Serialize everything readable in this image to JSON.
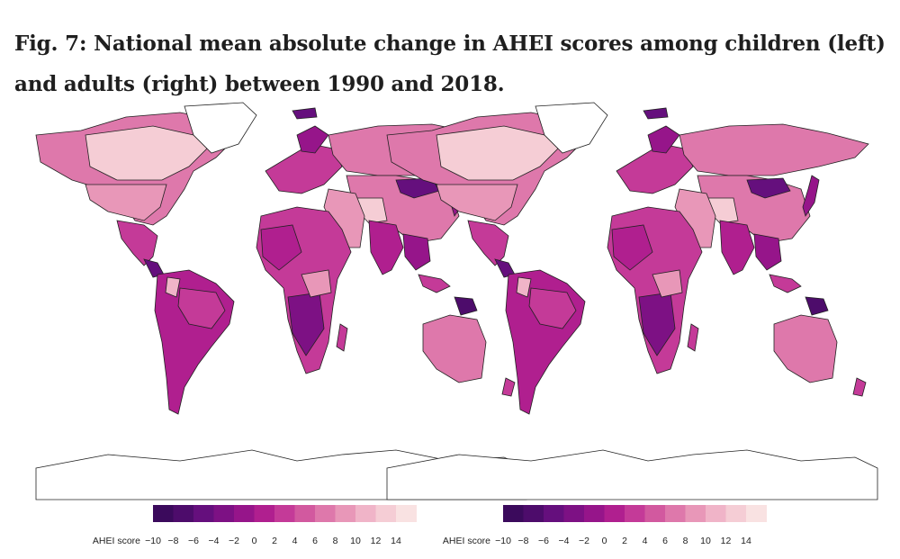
{
  "figure": {
    "title": "Fig. 7: National mean absolute change in AHEI scores among children (left) and adults (right) between 1990 and 2018."
  },
  "panels": [
    {
      "name": "children",
      "position": "left"
    },
    {
      "name": "adults",
      "position": "right"
    }
  ],
  "legend": {
    "label": "AHEI score",
    "ticks": [
      "−10",
      "−8",
      "−6",
      "−4",
      "−2",
      "0",
      "2",
      "4",
      "6",
      "8",
      "10",
      "12",
      "14"
    ],
    "colors": [
      "#3b0a5c",
      "#4d0c6b",
      "#650f7d",
      "#7d1184",
      "#96158a",
      "#b01f8f",
      "#c43a98",
      "#d2599f",
      "#de78ab",
      "#e897b8",
      "#f0b4c8",
      "#f5cdd5",
      "#f9e2e2"
    ]
  },
  "map_colors": {
    "ocean": "#ffffff",
    "border": "#222222",
    "antarctica": "#ffffff"
  }
}
